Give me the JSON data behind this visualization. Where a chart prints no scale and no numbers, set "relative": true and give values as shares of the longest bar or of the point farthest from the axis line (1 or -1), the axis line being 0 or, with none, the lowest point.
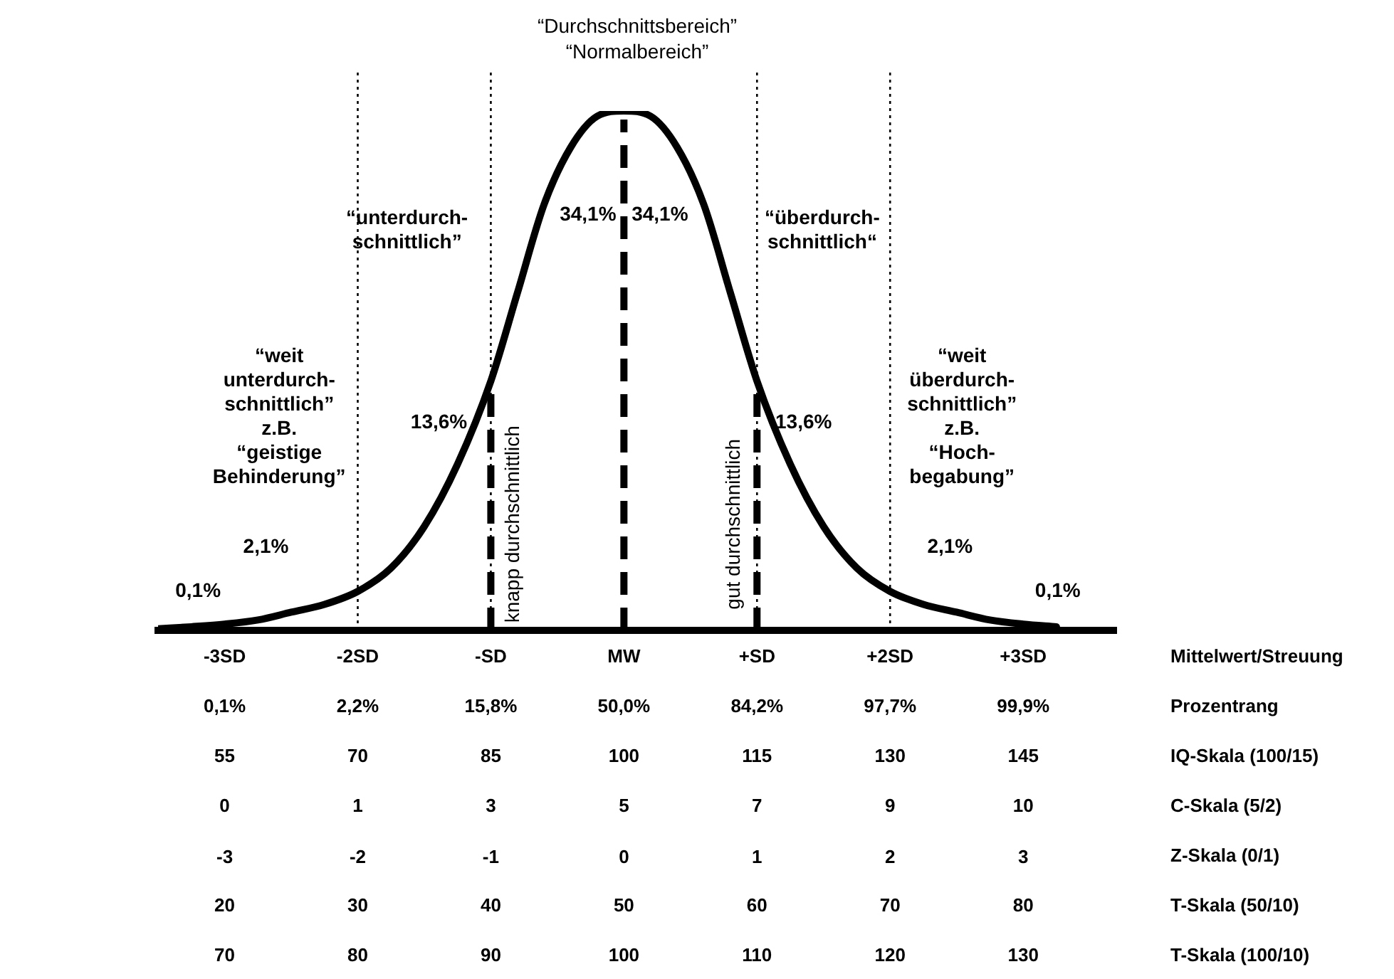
{
  "chart_data": {
    "type": "line",
    "relative": true,
    "grid": false,
    "marker": "none",
    "line_style": "solid",
    "x": [
      -3.5,
      -3.25,
      -3,
      -2.75,
      -2.5,
      -2.25,
      -2,
      -1.75,
      -1.5,
      -1.25,
      -1,
      -0.8,
      -0.6,
      -0.4,
      -0.2,
      0,
      0.2,
      0.4,
      0.6,
      0.8,
      1,
      1.25,
      1.5,
      1.75,
      2,
      2.25,
      2.5,
      2.75,
      3,
      3.25
    ],
    "series": [
      {
        "color": "#000000",
        "values": [
          0.003,
          0.007,
          0.012,
          0.02,
          0.035,
          0.05,
          0.075,
          0.12,
          0.2,
          0.32,
          0.48,
          0.65,
          0.82,
          0.93,
          0.99,
          1,
          0.99,
          0.93,
          0.82,
          0.65,
          0.48,
          0.32,
          0.2,
          0.12,
          0.075,
          0.05,
          0.035,
          0.02,
          0.012,
          0.007
        ]
      }
    ],
    "xlim": [
      -3.5,
      3.7
    ],
    "xlabel": "Z-Skala (0/1)",
    "xticks": [
      -3,
      -2,
      -1,
      0,
      1,
      2,
      3
    ],
    "ref_lines": [
      {
        "axis": "x",
        "value": -2,
        "line_style": "dotted"
      },
      {
        "axis": "x",
        "value": -1,
        "line_style": "dotted"
      },
      {
        "axis": "x",
        "value": 1,
        "line_style": "dotted"
      },
      {
        "axis": "x",
        "value": 2,
        "line_style": "dotted"
      },
      {
        "axis": "x",
        "value": -1,
        "line_style": "dashed",
        "label": "knapp durchschnittlich"
      },
      {
        "axis": "x",
        "value": 0,
        "line_style": "dashed"
      },
      {
        "axis": "x",
        "value": 1,
        "line_style": "dashed",
        "label": "gut durchschnittlich"
      }
    ],
    "annotations": [
      "“Durchschnittsbereich”\n“Normalbereich”",
      "34,1%",
      "34,1%",
      "13,6%",
      "13,6%",
      "2,1%",
      "2,1%",
      "0,1%",
      "0,1%",
      "“unterdurch-\nschnittlich”",
      "“überdurch-\nschnittlich“",
      "“weit\nunterdurch-\nschnittlich”\nz.B.\n“geistige\nBehinderung”",
      "“weit\nüberdurch-\nschnittlich”\nz.B.\n“Hoch-\nbegabung”",
      "-3SD",
      "-2SD",
      "-SD",
      "MW",
      "+SD",
      "+2SD",
      "+3SD",
      "Mittelwert/Streuung",
      "0,1%",
      "2,2%",
      "15,8%",
      "50,0%",
      "84,2%",
      "97,7%",
      "99,9%",
      "Prozentrang",
      "55",
      "70",
      "85",
      "100",
      "115",
      "130",
      "145",
      "IQ-Skala (100/15)",
      "0",
      "1",
      "3",
      "5",
      "7",
      "9",
      "10",
      "C-Skala (5/2)",
      "20",
      "30",
      "40",
      "50",
      "60",
      "70",
      "80",
      "T-Skala (50/10)",
      "70",
      "80",
      "90",
      "100",
      "110",
      "120",
      "130",
      "T-Skala (100/10)"
    ]
  }
}
